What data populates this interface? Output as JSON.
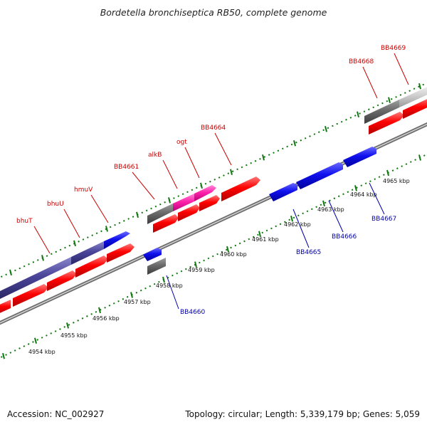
{
  "title": "Bordetella bronchiseptica RB50, complete genome",
  "footer": {
    "accession": "Accession: NC_002927",
    "summary": "Topology: circular; Length: 5,339,179 bp; Genes: 5,059"
  },
  "colors": {
    "top_label": "#cc0000",
    "bottom_label": "#0000aa",
    "tick": "#117711",
    "backbone": "#8a8a8a"
  },
  "scale": {
    "ticks": [
      "4954 kbp",
      "4955 kbp",
      "4956 kbp",
      "4957 kbp",
      "4958 kbp",
      "4959 kbp",
      "4960 kbp",
      "4961 kbp",
      "4962 kbp",
      "4963 kbp",
      "4964 kbp",
      "4965 kbp"
    ]
  },
  "top_labels": [
    "bhuT",
    "bhuU",
    "hmuV",
    "BB4661",
    "alkB",
    "ogt",
    "BB4664",
    "BB4668",
    "BB4669"
  ],
  "bottom_labels": [
    "BB4660",
    "BB4665",
    "BB4666",
    "BB4667"
  ]
}
